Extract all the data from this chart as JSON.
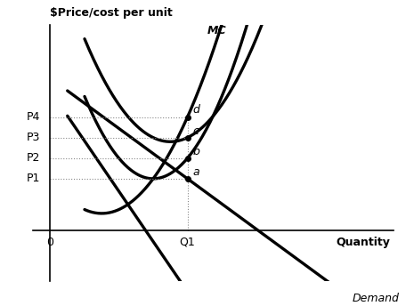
{
  "title": "$Price/cost per unit",
  "xlabel": "Quantity",
  "background_color": "#ffffff",
  "price_labels": [
    "P4",
    "P3",
    "P2",
    "P1"
  ],
  "q1_label": "Q1",
  "zero_label": "0",
  "point_labels": [
    "d",
    "c",
    "b",
    "a"
  ],
  "lw": 2.4,
  "grid_lw": 0.8,
  "grid_color": "#888888",
  "grid_ls": "dotted"
}
